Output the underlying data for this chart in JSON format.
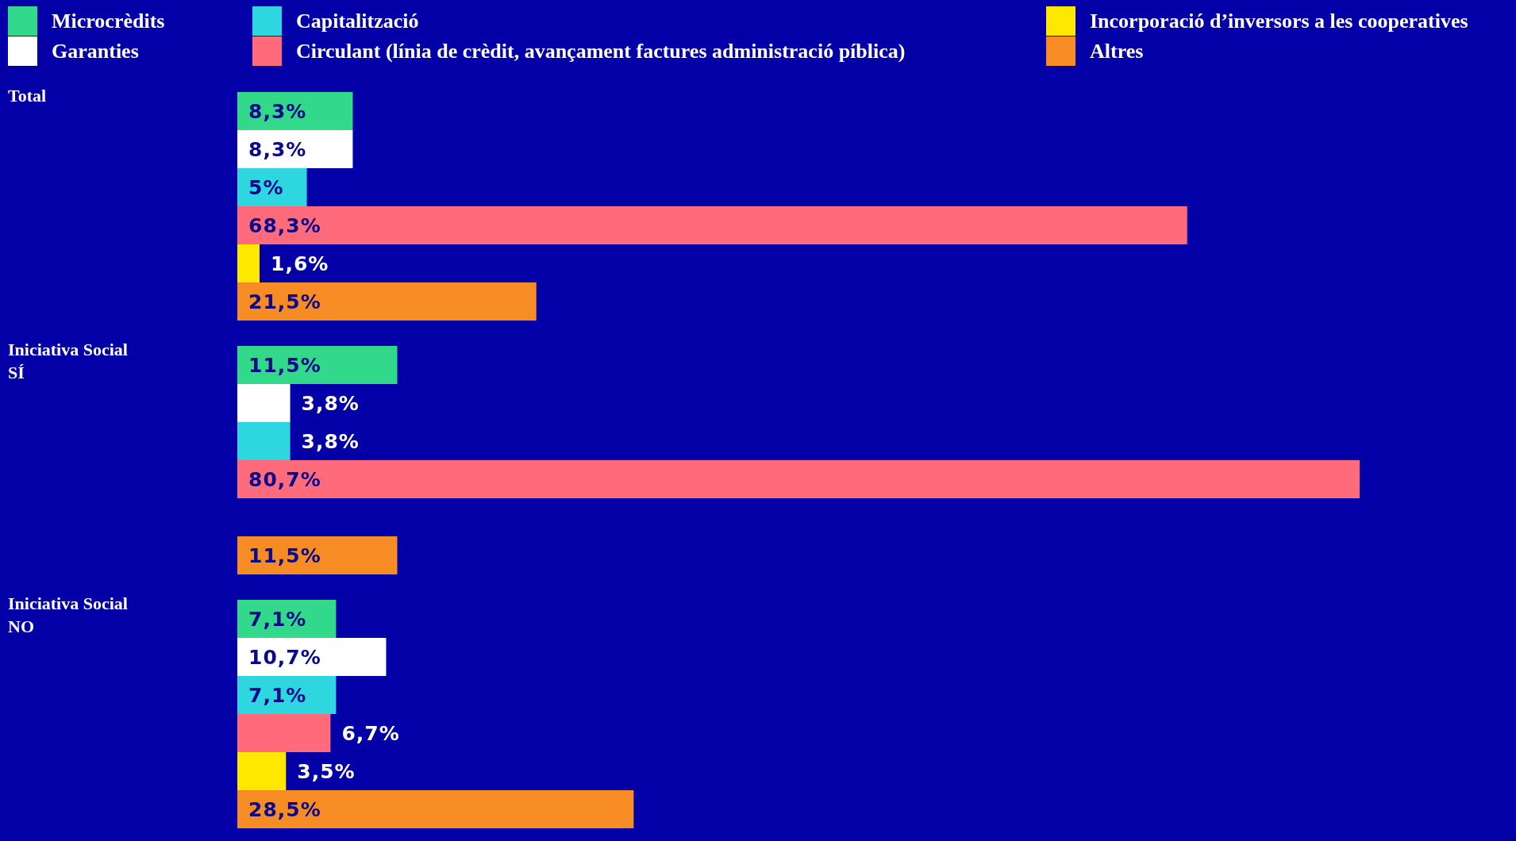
{
  "chart_data": {
    "type": "bar",
    "orientation": "horizontal",
    "categories": [
      "Total",
      "Iniciativa Social SÍ",
      "Iniciativa Social NO"
    ],
    "legend": "top",
    "series": [
      {
        "name": "Microcrèdits",
        "color": "#33d98a",
        "values": [
          8.3,
          11.5,
          7.1
        ],
        "value_labels": [
          "8,3%",
          "11,5%",
          "7,1%"
        ]
      },
      {
        "name": "Garanties",
        "color": "#ffffff",
        "values": [
          8.3,
          3.8,
          10.7
        ],
        "value_labels": [
          "8,3%",
          "3,8%",
          "10,7%"
        ]
      },
      {
        "name": "Capitalització",
        "color": "#2ed6e0",
        "values": [
          5,
          3.8,
          7.1
        ],
        "value_labels": [
          "5%",
          "3,8%",
          "7,1%"
        ]
      },
      {
        "name": "Circulant (línia de crèdit, avançament factures administració píblica)",
        "color": "#ff6b7a",
        "values": [
          68.3,
          80.7,
          6.7
        ],
        "value_labels": [
          "68,3%",
          "80,7%",
          "6,7%"
        ]
      },
      {
        "name": "Incorporació d’inversors a les cooperatives",
        "color": "#ffe800",
        "values": [
          1.6,
          null,
          3.5
        ],
        "value_labels": [
          "1,6%",
          null,
          "3,5%"
        ]
      },
      {
        "name": "Altres",
        "color": "#f78c25",
        "values": [
          21.5,
          11.5,
          28.5
        ],
        "value_labels": [
          "21,5%",
          "11,5%",
          "28,5%"
        ]
      }
    ]
  }
}
